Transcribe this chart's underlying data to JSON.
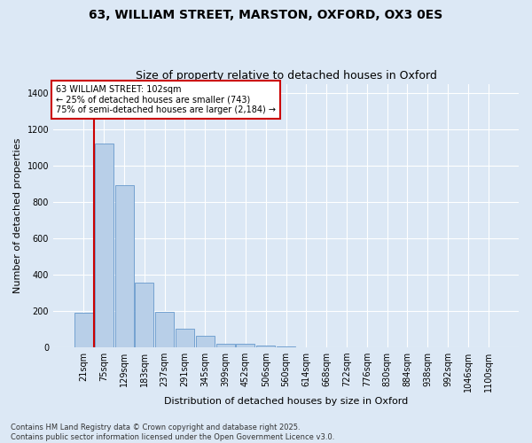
{
  "title_line1": "63, WILLIAM STREET, MARSTON, OXFORD, OX3 0ES",
  "title_line2": "Size of property relative to detached houses in Oxford",
  "xlabel": "Distribution of detached houses by size in Oxford",
  "ylabel": "Number of detached properties",
  "categories": [
    "21sqm",
    "75sqm",
    "129sqm",
    "183sqm",
    "237sqm",
    "291sqm",
    "345sqm",
    "399sqm",
    "452sqm",
    "506sqm",
    "560sqm",
    "614sqm",
    "668sqm",
    "722sqm",
    "776sqm",
    "830sqm",
    "884sqm",
    "938sqm",
    "992sqm",
    "1046sqm",
    "1100sqm"
  ],
  "values": [
    190,
    1120,
    890,
    355,
    195,
    100,
    62,
    20,
    17,
    10,
    5,
    0,
    0,
    0,
    0,
    0,
    0,
    0,
    0,
    0,
    0
  ],
  "bar_color": "#b8cfe8",
  "bar_edge_color": "#6699cc",
  "vline_x": 0.5,
  "vline_color": "#cc0000",
  "annotation_title": "63 WILLIAM STREET: 102sqm",
  "annotation_line2": "← 25% of detached houses are smaller (743)",
  "annotation_line3": "75% of semi-detached houses are larger (2,184) →",
  "annotation_box_color": "#cc0000",
  "ylim": [
    0,
    1450
  ],
  "yticks": [
    0,
    200,
    400,
    600,
    800,
    1000,
    1200,
    1400
  ],
  "footer_line1": "Contains HM Land Registry data © Crown copyright and database right 2025.",
  "footer_line2": "Contains public sector information licensed under the Open Government Licence v3.0.",
  "bg_color": "#dce8f5",
  "plot_bg_color": "#dce8f5",
  "grid_color": "#ffffff",
  "title_fontsize": 10,
  "subtitle_fontsize": 9,
  "xlabel_fontsize": 8,
  "ylabel_fontsize": 8,
  "tick_fontsize": 7,
  "annotation_fontsize": 7,
  "footer_fontsize": 6
}
